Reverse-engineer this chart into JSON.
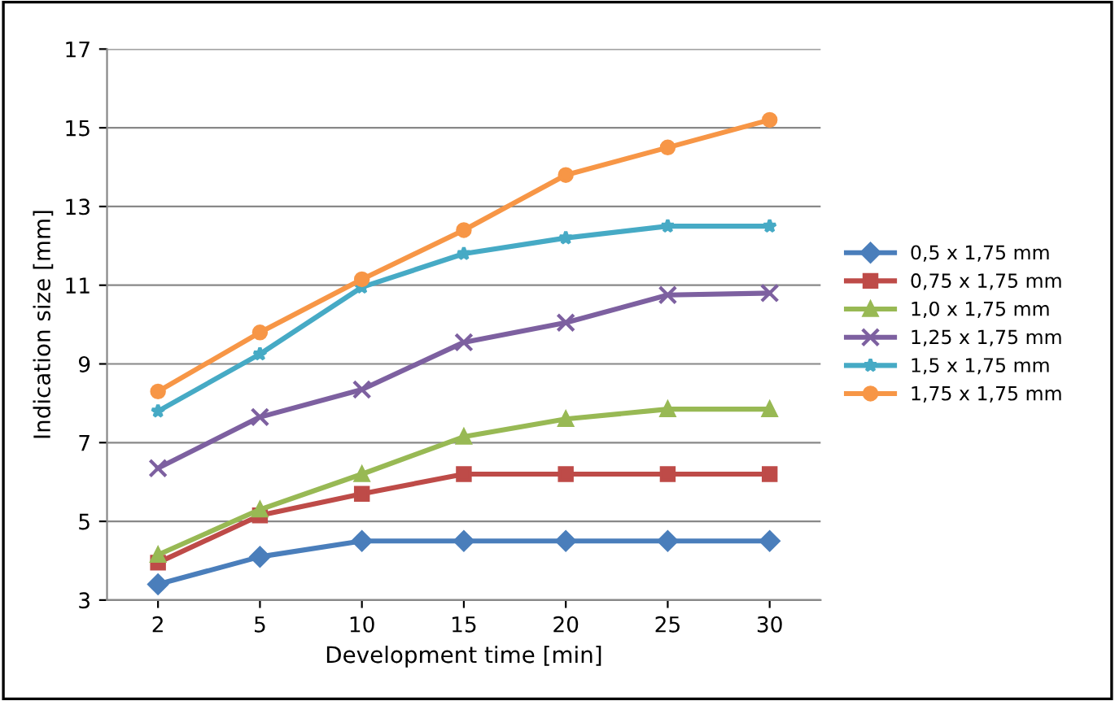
{
  "chart_data": {
    "type": "line",
    "xlabel": "Development time [min]",
    "ylabel": "Indication size [mm]",
    "categories": [
      "2",
      "5",
      "10",
      "15",
      "20",
      "25",
      "30"
    ],
    "ylim": [
      3,
      17
    ],
    "yticks": [
      3,
      5,
      7,
      9,
      11,
      13,
      15,
      17
    ],
    "grid": "y",
    "legend": "right",
    "line_style": "solid",
    "series": [
      {
        "name": "0,5 x 1,75 mm",
        "color": "#4a7ebb",
        "marker": "diamond",
        "values": [
          3.4,
          4.1,
          4.5,
          4.5,
          4.5,
          4.5,
          4.5
        ]
      },
      {
        "name": "0,75 x 1,75 mm",
        "color": "#be4b48",
        "marker": "square",
        "values": [
          3.95,
          5.15,
          5.7,
          6.2,
          6.2,
          6.2,
          6.2
        ]
      },
      {
        "name": "1,0 x 1,75 mm",
        "color": "#98b954",
        "marker": "triangle",
        "values": [
          4.15,
          5.3,
          6.2,
          7.15,
          7.6,
          7.85,
          7.85
        ]
      },
      {
        "name": "1,25 x 1,75 mm",
        "color": "#7d60a0",
        "marker": "cross",
        "values": [
          6.35,
          7.65,
          8.35,
          9.55,
          10.05,
          10.75,
          10.8
        ]
      },
      {
        "name": "1,5 x 1,75 mm",
        "color": "#46aac5",
        "marker": "star",
        "values": [
          7.8,
          9.25,
          10.95,
          11.8,
          12.2,
          12.5,
          12.5
        ]
      },
      {
        "name": "1,75 x 1,75 mm",
        "color": "#f79646",
        "marker": "circle",
        "values": [
          8.3,
          9.8,
          11.15,
          12.4,
          13.8,
          14.5,
          15.2
        ]
      }
    ]
  }
}
